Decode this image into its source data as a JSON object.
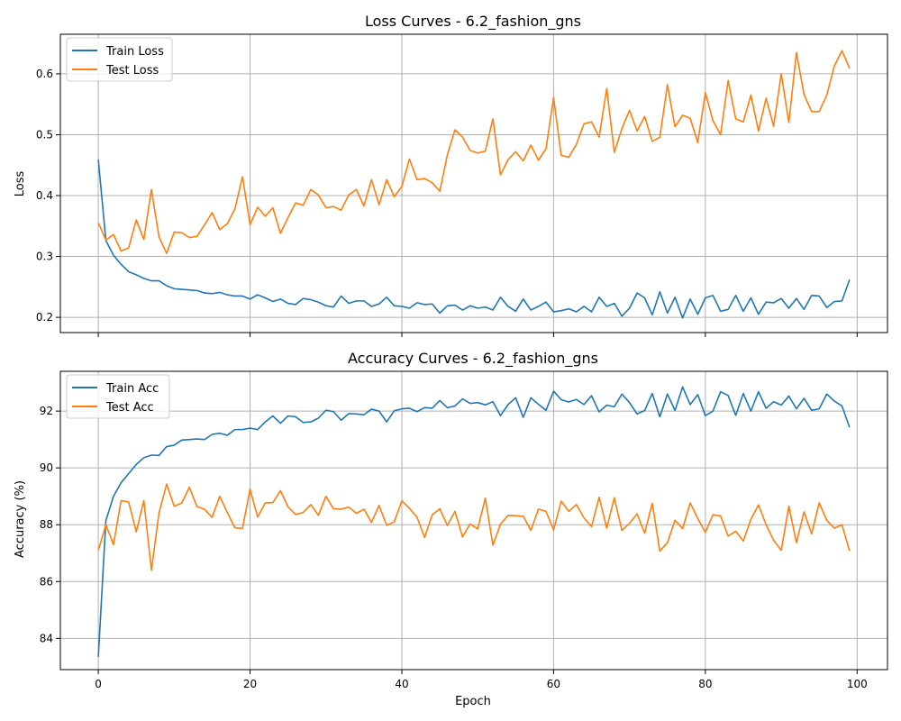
{
  "chart_data": [
    {
      "type": "line",
      "title": "Loss Curves - 6.2_fashion_gns",
      "xlabel": "",
      "ylabel": "Loss",
      "xlim": [
        -5,
        104
      ],
      "ylim": [
        0.175,
        0.665
      ],
      "xticks": [
        0,
        20,
        40,
        60,
        80,
        100
      ],
      "xtick_labels_shown": false,
      "yticks": [
        0.2,
        0.3,
        0.4,
        0.5,
        0.6
      ],
      "ytick_labels": [
        "0.2",
        "0.3",
        "0.4",
        "0.5",
        "0.6"
      ],
      "grid": true,
      "legend_position": "top-left",
      "series": [
        {
          "name": "Train Loss",
          "color": "#1f77b4",
          "values": [
            0.459,
            0.326,
            0.302,
            0.287,
            0.275,
            0.27,
            0.264,
            0.26,
            0.26,
            0.252,
            0.247,
            0.246,
            0.245,
            0.244,
            0.24,
            0.239,
            0.241,
            0.237,
            0.235,
            0.235,
            0.23,
            0.237,
            0.232,
            0.226,
            0.23,
            0.223,
            0.221,
            0.231,
            0.229,
            0.225,
            0.219,
            0.217,
            0.235,
            0.223,
            0.227,
            0.227,
            0.218,
            0.222,
            0.233,
            0.219,
            0.218,
            0.215,
            0.224,
            0.221,
            0.222,
            0.207,
            0.219,
            0.22,
            0.212,
            0.219,
            0.215,
            0.217,
            0.212,
            0.233,
            0.218,
            0.21,
            0.23,
            0.212,
            0.218,
            0.225,
            0.209,
            0.211,
            0.214,
            0.209,
            0.218,
            0.209,
            0.233,
            0.218,
            0.223,
            0.202,
            0.215,
            0.24,
            0.232,
            0.204,
            0.242,
            0.207,
            0.233,
            0.199,
            0.23,
            0.205,
            0.232,
            0.236,
            0.21,
            0.213,
            0.236,
            0.21,
            0.232,
            0.205,
            0.225,
            0.224,
            0.231,
            0.215,
            0.231,
            0.213,
            0.236,
            0.235,
            0.216,
            0.226,
            0.227,
            0.262
          ]
        },
        {
          "name": "Test Loss",
          "color": "#ff7f0e",
          "values": [
            0.355,
            0.327,
            0.336,
            0.309,
            0.314,
            0.36,
            0.328,
            0.41,
            0.332,
            0.305,
            0.34,
            0.339,
            0.331,
            0.333,
            0.352,
            0.372,
            0.344,
            0.354,
            0.378,
            0.431,
            0.352,
            0.381,
            0.366,
            0.38,
            0.338,
            0.364,
            0.388,
            0.384,
            0.41,
            0.401,
            0.38,
            0.382,
            0.376,
            0.401,
            0.41,
            0.383,
            0.426,
            0.385,
            0.426,
            0.398,
            0.415,
            0.46,
            0.426,
            0.428,
            0.421,
            0.407,
            0.467,
            0.508,
            0.496,
            0.474,
            0.47,
            0.473,
            0.526,
            0.434,
            0.459,
            0.472,
            0.457,
            0.483,
            0.458,
            0.477,
            0.561,
            0.466,
            0.463,
            0.484,
            0.518,
            0.521,
            0.496,
            0.576,
            0.471,
            0.51,
            0.54,
            0.506,
            0.53,
            0.489,
            0.496,
            0.582,
            0.513,
            0.532,
            0.527,
            0.487,
            0.569,
            0.523,
            0.5,
            0.589,
            0.526,
            0.521,
            0.565,
            0.506,
            0.56,
            0.514,
            0.6,
            0.52,
            0.635,
            0.566,
            0.538,
            0.538,
            0.565,
            0.613,
            0.638,
            0.609
          ]
        }
      ]
    },
    {
      "type": "line",
      "title": "Accuracy Curves - 6.2_fashion_gns",
      "xlabel": "Epoch",
      "ylabel": "Accuracy (%)",
      "xlim": [
        -5,
        104
      ],
      "ylim": [
        82.9,
        93.4
      ],
      "xticks": [
        0,
        20,
        40,
        60,
        80,
        100
      ],
      "xtick_labels": [
        "0",
        "20",
        "40",
        "60",
        "80",
        "100"
      ],
      "yticks": [
        84,
        86,
        88,
        90,
        92
      ],
      "ytick_labels": [
        "84",
        "86",
        "88",
        "90",
        "92"
      ],
      "grid": true,
      "legend_position": "top-left",
      "series": [
        {
          "name": "Train Acc",
          "color": "#1f77b4",
          "values": [
            83.35,
            88.15,
            89.0,
            89.48,
            89.8,
            90.12,
            90.36,
            90.45,
            90.44,
            90.75,
            90.8,
            90.98,
            91.0,
            91.02,
            91.0,
            91.18,
            91.22,
            91.15,
            91.35,
            91.35,
            91.4,
            91.35,
            91.62,
            91.83,
            91.57,
            91.83,
            91.8,
            91.6,
            91.62,
            91.75,
            92.03,
            91.98,
            91.68,
            91.91,
            91.9,
            91.87,
            92.07,
            92.0,
            91.62,
            92.01,
            92.08,
            92.1,
            91.98,
            92.12,
            92.1,
            92.37,
            92.12,
            92.18,
            92.43,
            92.27,
            92.3,
            92.22,
            92.33,
            91.84,
            92.23,
            92.47,
            91.78,
            92.47,
            92.24,
            92.03,
            92.7,
            92.4,
            92.32,
            92.41,
            92.23,
            92.54,
            91.97,
            92.21,
            92.15,
            92.6,
            92.3,
            91.9,
            92.02,
            92.62,
            91.8,
            92.6,
            92.02,
            92.85,
            92.23,
            92.58,
            91.84,
            92.0,
            92.68,
            92.55,
            91.85,
            92.62,
            92.0,
            92.68,
            92.1,
            92.33,
            92.21,
            92.53,
            92.08,
            92.45,
            92.03,
            92.08,
            92.6,
            92.35,
            92.18,
            91.43
          ]
        },
        {
          "name": "Test Acc",
          "color": "#ff7f0e",
          "values": [
            87.1,
            88.0,
            87.3,
            88.85,
            88.8,
            87.75,
            88.85,
            86.4,
            88.42,
            89.43,
            88.65,
            88.77,
            89.32,
            88.64,
            88.54,
            88.26,
            89.0,
            88.43,
            87.89,
            87.87,
            89.25,
            88.27,
            88.77,
            88.78,
            89.2,
            88.63,
            88.36,
            88.43,
            88.71,
            88.33,
            89.0,
            88.56,
            88.55,
            88.62,
            88.4,
            88.55,
            88.08,
            88.68,
            87.98,
            88.1,
            88.84,
            88.58,
            88.26,
            87.55,
            88.35,
            88.56,
            87.97,
            88.47,
            87.57,
            88.03,
            87.85,
            88.94,
            87.28,
            88.02,
            88.33,
            88.32,
            88.3,
            87.8,
            88.55,
            88.47,
            87.82,
            88.83,
            88.47,
            88.71,
            88.24,
            87.93,
            88.97,
            87.88,
            88.95,
            87.8,
            88.05,
            88.38,
            87.7,
            88.76,
            87.07,
            87.37,
            88.16,
            87.86,
            88.77,
            88.22,
            87.73,
            88.35,
            88.31,
            87.6,
            87.77,
            87.43,
            88.19,
            88.7,
            88.0,
            87.45,
            87.1,
            88.65,
            87.37,
            88.45,
            87.68,
            88.77,
            88.15,
            87.88,
            88.0,
            87.08
          ]
        }
      ]
    }
  ]
}
